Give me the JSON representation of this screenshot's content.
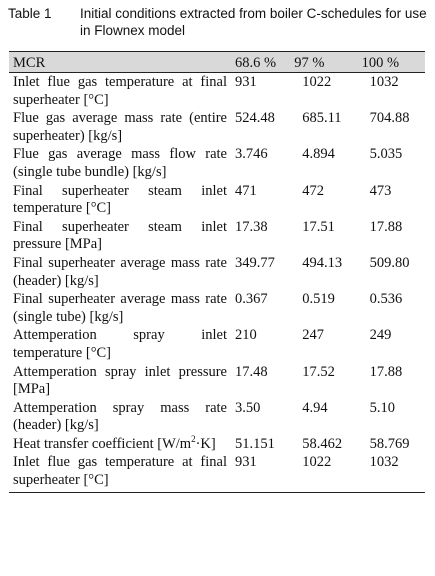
{
  "caption": {
    "number": "Table 1",
    "text": "Initial conditions extracted from boiler C-schedules for use in Flownex model"
  },
  "table": {
    "headers": [
      "MCR",
      "68.6 %",
      "97 %",
      "100 %"
    ],
    "rows": [
      {
        "label": "Inlet flue gas temperature at final superheater [°C]",
        "values": [
          "931",
          "1022",
          "1032"
        ]
      },
      {
        "label": "Flue gas average mass rate (entire superheater) [kg/s]",
        "values": [
          "524.48",
          "685.11",
          "704.88"
        ]
      },
      {
        "label": "Flue gas average mass flow rate (single tube bundle) [kg/s]",
        "values": [
          "3.746",
          "4.894",
          "5.035"
        ]
      },
      {
        "label": "Final superheater steam inlet temperature [°C]",
        "values": [
          "471",
          "472",
          "473"
        ]
      },
      {
        "label": "Final superheater steam inlet pressure [MPa]",
        "values": [
          "17.38",
          "17.51",
          "17.88"
        ]
      },
      {
        "label": "Final superheater average mass rate (header) [kg/s]",
        "values": [
          "349.77",
          "494.13",
          "509.80"
        ]
      },
      {
        "label": "Final superheater average mass rate (single tube) [kg/s]",
        "values": [
          "0.367",
          "0.519",
          "0.536"
        ]
      },
      {
        "label": "Attemperation spray inlet temperature [°C]",
        "values": [
          "210",
          "247",
          "249"
        ]
      },
      {
        "label": "Attemperation spray inlet pressure [MPa]",
        "values": [
          "17.48",
          "17.52",
          "17.88"
        ]
      },
      {
        "label": "Attemperation spray mass rate (header) [kg/s]",
        "values": [
          "3.50",
          "4.94",
          "5.10"
        ]
      },
      {
        "label_pre": "Heat transfer coefficient [W/m",
        "label_sup": "2",
        "label_post": "·K]",
        "values": [
          "51.151",
          "58.462",
          "58.769"
        ]
      },
      {
        "label": "Inlet flue gas temperature at final superheater [°C]",
        "values": [
          "931",
          "1022",
          "1032"
        ]
      }
    ]
  }
}
